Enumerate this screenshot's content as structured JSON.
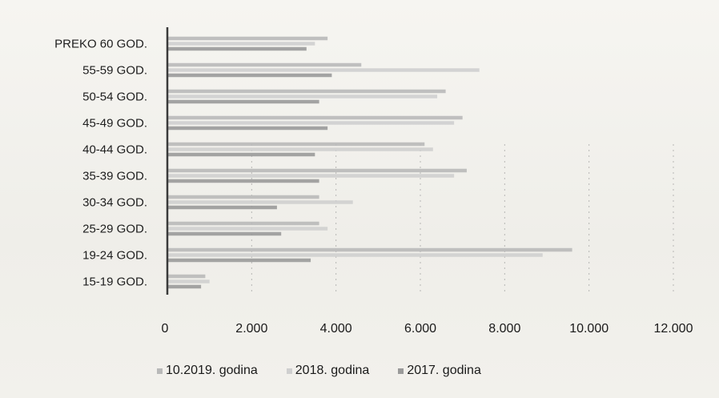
{
  "colors": {
    "series": [
      "#b9b9b9",
      "#cfcfcf",
      "#9a9a9a"
    ],
    "axis": "#3a3a3a",
    "grid": "#8a8a8a"
  },
  "chart_data": {
    "type": "bar",
    "orientation": "horizontal",
    "title": "",
    "xlabel": "",
    "ylabel": "",
    "xlim": [
      0,
      12000
    ],
    "xticks": [
      0,
      2000,
      4000,
      6000,
      8000,
      10000,
      12000
    ],
    "tick_labels": [
      "0",
      "2.000",
      "4.000",
      "6.000",
      "8.000",
      "10.000",
      "12.000"
    ],
    "categories": [
      "PREKO 60 GOD.",
      "55-59 GOD.",
      "50-54 GOD.",
      "45-49 GOD.",
      "40-44 GOD.",
      "35-39 GOD.",
      "30-34 GOD.",
      "25-29 GOD.",
      "19-24 GOD.",
      "15-19 GOD."
    ],
    "series": [
      {
        "name": "10.2019. godina",
        "values": [
          3800,
          4600,
          6600,
          7000,
          6100,
          7100,
          3600,
          3600,
          9600,
          900
        ]
      },
      {
        "name": "2018. godina",
        "values": [
          3500,
          7400,
          6400,
          6800,
          6300,
          6800,
          4400,
          3800,
          8900,
          1000
        ]
      },
      {
        "name": "2017. godina",
        "values": [
          3300,
          3900,
          3600,
          3800,
          3500,
          3600,
          2600,
          2700,
          3400,
          800
        ]
      }
    ],
    "grid": true,
    "legend_position": "bottom"
  }
}
